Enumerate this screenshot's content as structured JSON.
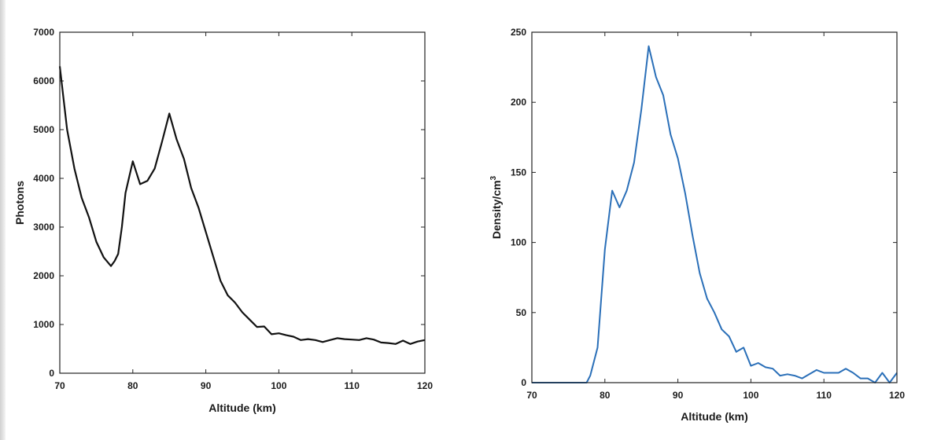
{
  "chart_data": [
    {
      "type": "line",
      "xlabel": "Altitude (km)",
      "ylabel": "Photons",
      "xlim": [
        70,
        120
      ],
      "ylim": [
        0,
        7000
      ],
      "xticks": [
        70,
        80,
        90,
        100,
        110,
        120
      ],
      "yticks": [
        0,
        1000,
        2000,
        3000,
        4000,
        5000,
        6000,
        7000
      ],
      "line_color": "#111111",
      "grid": false,
      "series": [
        {
          "x": [
            70,
            71,
            72,
            73,
            74,
            75,
            76,
            77,
            77.5,
            78,
            78.5,
            79,
            80,
            81,
            82,
            83,
            84,
            85,
            86,
            87,
            88,
            89,
            90,
            91,
            92,
            93,
            94,
            95,
            96,
            97,
            98,
            99,
            100,
            101,
            102,
            103,
            104,
            105,
            106,
            107,
            108,
            109,
            110,
            111,
            112,
            113,
            114,
            115,
            116,
            117,
            118,
            119,
            120
          ],
          "values": [
            6300,
            5000,
            4200,
            3600,
            3200,
            2700,
            2380,
            2200,
            2300,
            2450,
            3000,
            3700,
            4350,
            3880,
            3950,
            4200,
            4750,
            5330,
            4800,
            4400,
            3800,
            3400,
            2900,
            2400,
            1900,
            1600,
            1450,
            1250,
            1100,
            950,
            960,
            800,
            820,
            780,
            750,
            680,
            700,
            680,
            640,
            680,
            720,
            700,
            690,
            680,
            720,
            690,
            630,
            620,
            600,
            670,
            600,
            650,
            680
          ]
        }
      ]
    },
    {
      "type": "line",
      "xlabel": "Altitude (km)",
      "ylabel": "Density/cm",
      "ylabel_superscript": "3",
      "xlim": [
        70,
        120
      ],
      "ylim": [
        0,
        250
      ],
      "xticks": [
        70,
        80,
        90,
        100,
        110,
        120
      ],
      "yticks": [
        0,
        50,
        100,
        150,
        200,
        250
      ],
      "line_color": "#2a6fb8",
      "grid": false,
      "series": [
        {
          "x": [
            70,
            72,
            74,
            76,
            77,
            77.5,
            78,
            79,
            80,
            81,
            82,
            83,
            84,
            85,
            86,
            87,
            88,
            89,
            90,
            91,
            92,
            93,
            94,
            95,
            96,
            97,
            98,
            99,
            100,
            101,
            102,
            103,
            104,
            105,
            106,
            107,
            108,
            109,
            110,
            111,
            112,
            113,
            114,
            115,
            116,
            117,
            118,
            119,
            120
          ],
          "values": [
            0,
            0,
            0,
            0,
            0,
            0,
            5,
            25,
            95,
            137,
            125,
            137,
            157,
            195,
            240,
            218,
            205,
            177,
            160,
            135,
            105,
            78,
            60,
            50,
            38,
            33,
            22,
            25,
            12,
            14,
            11,
            10,
            5,
            6,
            5,
            3,
            6,
            9,
            7,
            7,
            7,
            10,
            7,
            3,
            3,
            0,
            7,
            0,
            7
          ]
        }
      ]
    }
  ]
}
